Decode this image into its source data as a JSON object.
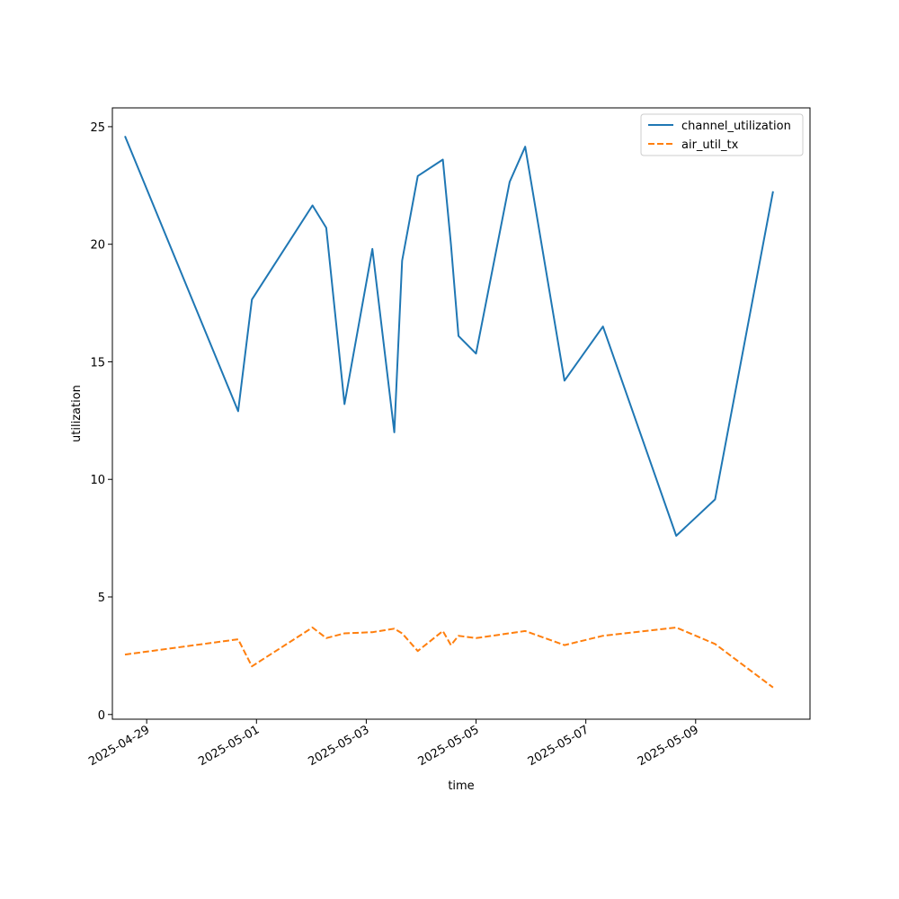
{
  "chart_data": {
    "type": "line",
    "title": "",
    "xlabel": "time",
    "ylabel": "utilization",
    "x_type": "datetime",
    "xlim": [
      "2025-04-28T09:00",
      "2025-05-11T02:00"
    ],
    "ylim": [
      -0.2,
      25.8
    ],
    "x_ticks": [
      "2025-04-29",
      "2025-05-01",
      "2025-05-03",
      "2025-05-05",
      "2025-05-07",
      "2025-05-09"
    ],
    "y_ticks": [
      0,
      5,
      10,
      15,
      20,
      25
    ],
    "grid": false,
    "legend": {
      "position": "top-right"
    },
    "series": [
      {
        "name": "channel_utilization",
        "color": "#1f77b4",
        "style": "solid",
        "x": [
          "2025-04-28T14:30",
          "2025-04-30T16:00",
          "2025-04-30T22:00",
          "2025-05-02T00:30",
          "2025-05-02T06:30",
          "2025-05-02T14:30",
          "2025-05-03T02:40",
          "2025-05-03T12:15",
          "2025-05-03T15:40",
          "2025-05-03T22:30",
          "2025-05-04T09:30",
          "2025-05-04T13:00",
          "2025-05-04T16:20",
          "2025-05-05T00:00",
          "2025-05-05T14:40",
          "2025-05-05T21:30",
          "2025-05-06T14:40",
          "2025-05-07T07:30",
          "2025-05-08T15:30",
          "2025-05-09T08:30",
          "2025-05-10T09:50"
        ],
        "values": [
          24.6,
          12.9,
          17.65,
          21.65,
          20.7,
          13.2,
          19.8,
          12.0,
          19.3,
          22.9,
          23.6,
          20.0,
          16.1,
          15.35,
          22.65,
          24.15,
          14.2,
          16.5,
          7.6,
          9.15,
          22.25
        ]
      },
      {
        "name": "air_util_tx",
        "color": "#ff7f0e",
        "style": "dashed",
        "x": [
          "2025-04-28T14:30",
          "2025-04-30T16:00",
          "2025-04-30T22:00",
          "2025-05-02T00:30",
          "2025-05-02T06:30",
          "2025-05-02T14:30",
          "2025-05-03T02:40",
          "2025-05-03T12:15",
          "2025-05-03T15:40",
          "2025-05-03T22:30",
          "2025-05-04T09:30",
          "2025-05-04T13:00",
          "2025-05-04T16:20",
          "2025-05-05T00:00",
          "2025-05-05T21:30",
          "2025-05-06T14:40",
          "2025-05-07T07:30",
          "2025-05-08T15:30",
          "2025-05-09T08:30",
          "2025-05-10T09:50"
        ],
        "values": [
          2.55,
          3.2,
          2.05,
          3.7,
          3.25,
          3.45,
          3.5,
          3.65,
          3.45,
          2.7,
          3.55,
          2.95,
          3.35,
          3.25,
          3.55,
          2.95,
          3.35,
          3.7,
          3.0,
          1.15
        ]
      }
    ]
  }
}
